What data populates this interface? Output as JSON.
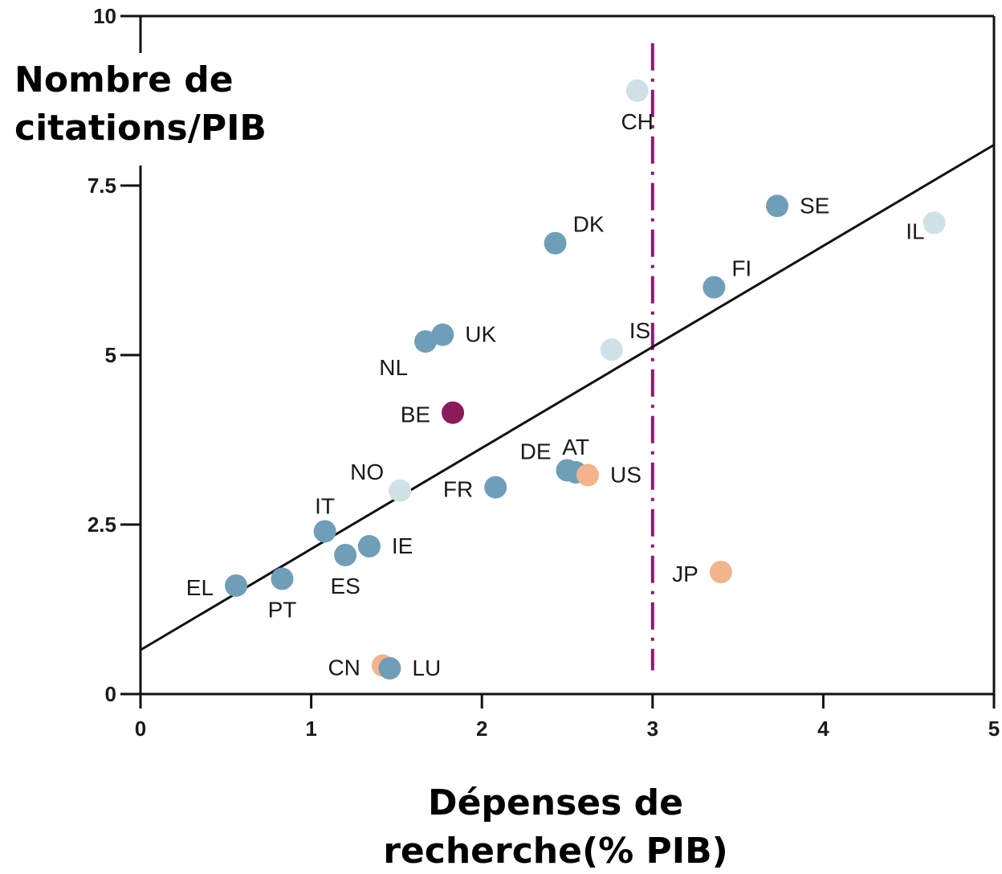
{
  "chart_data": {
    "type": "scatter",
    "title": "",
    "ylabel_lines": [
      "Nombre de",
      "citations/PIB"
    ],
    "xlabel_lines": [
      "Dépenses de",
      "recherche(% PIB)"
    ],
    "xlim": [
      0,
      5
    ],
    "ylim": [
      0,
      10
    ],
    "x_ticks": [
      0,
      1,
      2,
      3,
      4,
      5
    ],
    "x_tick_labels": [
      "0",
      "1",
      "2",
      "3",
      "4",
      "5"
    ],
    "y_ticks": [
      0,
      2.5,
      5,
      7.5,
      10
    ],
    "y_tick_labels": [
      "0",
      "2.5",
      "5",
      "7.5",
      "10"
    ],
    "grid": false,
    "legend": "none",
    "colors": {
      "blue": "#6f9fb8",
      "lightblue": "#cfe1e6",
      "orange": "#f4b48b",
      "purple": "#8b1a5a",
      "line": "#111111",
      "reference": "#8b1a73"
    },
    "regression_line": {
      "x": [
        0,
        5
      ],
      "y": [
        0.65,
        8.1
      ]
    },
    "reference_line": {
      "x": 3,
      "y_range": [
        0.35,
        9.6
      ],
      "style": "dash-dot"
    },
    "points": [
      {
        "label": "CH",
        "x": 2.91,
        "y": 8.9,
        "color": "lightblue",
        "label_pos": "below"
      },
      {
        "label": "SE",
        "x": 3.73,
        "y": 7.2,
        "color": "blue",
        "label_pos": "right"
      },
      {
        "label": "IL",
        "x": 4.65,
        "y": 6.95,
        "color": "lightblue",
        "label_pos": "left-below"
      },
      {
        "label": "DK",
        "x": 2.43,
        "y": 6.65,
        "color": "blue",
        "label_pos": "upper-right"
      },
      {
        "label": "FI",
        "x": 3.36,
        "y": 6.0,
        "color": "blue",
        "label_pos": "upper-right"
      },
      {
        "label": "UK",
        "x": 1.77,
        "y": 5.3,
        "color": "blue",
        "label_pos": "right"
      },
      {
        "label": "NL",
        "x": 1.67,
        "y": 5.2,
        "color": "blue",
        "label_pos": "lower-left"
      },
      {
        "label": "IS",
        "x": 2.76,
        "y": 5.08,
        "color": "lightblue",
        "label_pos": "upper-right"
      },
      {
        "label": "BE",
        "x": 1.83,
        "y": 4.15,
        "color": "purple",
        "label_pos": "left"
      },
      {
        "label": "AT",
        "x": 2.55,
        "y": 3.27,
        "color": "blue",
        "label_pos": "above"
      },
      {
        "label": "DE",
        "x": 2.5,
        "y": 3.3,
        "color": "blue",
        "label_pos": "upper-left"
      },
      {
        "label": "US",
        "x": 2.62,
        "y": 3.23,
        "color": "orange",
        "label_pos": "right"
      },
      {
        "label": "FR",
        "x": 2.08,
        "y": 3.05,
        "color": "blue",
        "label_pos": "left"
      },
      {
        "label": "NO",
        "x": 1.52,
        "y": 3.0,
        "color": "lightblue",
        "label_pos": "upper-left"
      },
      {
        "label": "IT",
        "x": 1.08,
        "y": 2.4,
        "color": "blue",
        "label_pos": "above"
      },
      {
        "label": "IE",
        "x": 1.34,
        "y": 2.18,
        "color": "blue",
        "label_pos": "right"
      },
      {
        "label": "ES",
        "x": 1.2,
        "y": 2.05,
        "color": "blue",
        "label_pos": "below"
      },
      {
        "label": "JP",
        "x": 3.4,
        "y": 1.8,
        "color": "orange",
        "label_pos": "left"
      },
      {
        "label": "PT",
        "x": 0.83,
        "y": 1.7,
        "color": "blue",
        "label_pos": "below"
      },
      {
        "label": "EL",
        "x": 0.56,
        "y": 1.6,
        "color": "blue",
        "label_pos": "left"
      },
      {
        "label": "CN",
        "x": 1.42,
        "y": 0.42,
        "color": "orange",
        "label_pos": "left"
      },
      {
        "label": "LU",
        "x": 1.46,
        "y": 0.38,
        "color": "blue",
        "label_pos": "right"
      }
    ]
  }
}
